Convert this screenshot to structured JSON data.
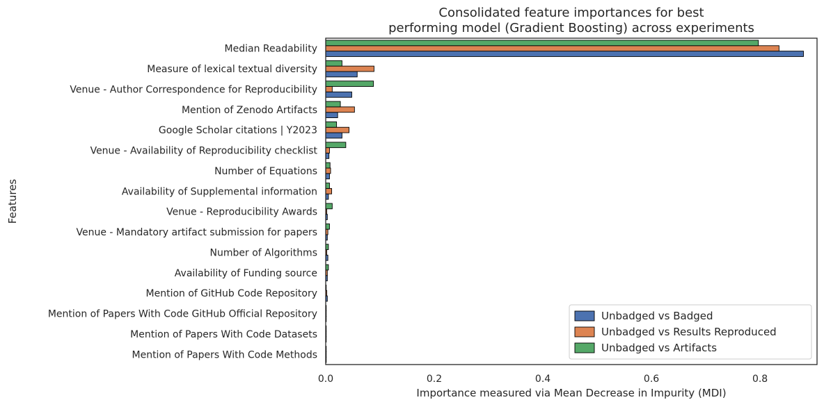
{
  "chart_data": {
    "type": "bar",
    "orientation": "horizontal",
    "title": "Consolidated feature importances for best performing model (Gradient Boosting) across experiments",
    "title_lines": [
      "Consolidated feature importances for best",
      "performing model (Gradient Boosting) across experiments"
    ],
    "xlabel": "Importance measured via Mean Decrease in Impurity (MDI)",
    "ylabel": "Features",
    "xlim": [
      0,
      0.905
    ],
    "xticks": [
      0.0,
      0.2,
      0.4,
      0.6,
      0.8
    ],
    "xtick_labels": [
      "0.0",
      "0.2",
      "0.4",
      "0.6",
      "0.8"
    ],
    "grid": false,
    "legend_position": "lower-right",
    "categories": [
      "Median Readability",
      "Measure of lexical textual diversity",
      "Venue - Author Correspondence for Reproducibility",
      "Mention of Zenodo Artifacts",
      "Google Scholar citations | Y2023",
      "Venue - Availability of Reproducibility checklist",
      "Number of Equations",
      "Availability of Supplemental information",
      "Venue - Reproducibility Awards",
      "Venue - Mandatory artifact submission for papers",
      "Number of Algorithms",
      "Availability of Funding source",
      "Mention of GitHub Code Repository",
      "Mention of Papers With Code GitHub Official Repository",
      "Mention of Papers With Code Datasets",
      "Mention of Papers With Code Methods"
    ],
    "series": [
      {
        "name": "Unbadged vs Badged",
        "color": "#4c72b0",
        "values": [
          0.88,
          0.058,
          0.048,
          0.022,
          0.03,
          0.006,
          0.007,
          0.005,
          0.003,
          0.003,
          0.004,
          0.003,
          0.003,
          0.001,
          0.001,
          0.001
        ]
      },
      {
        "name": "Unbadged vs Results Reproduced",
        "color": "#dd8452",
        "values": [
          0.835,
          0.089,
          0.012,
          0.053,
          0.043,
          0.007,
          0.009,
          0.011,
          0.002,
          0.004,
          0.002,
          0.003,
          0.002,
          0.001,
          0.001,
          0.001
        ]
      },
      {
        "name": "Unbadged vs Artifacts",
        "color": "#55a868",
        "values": [
          0.797,
          0.03,
          0.088,
          0.027,
          0.02,
          0.037,
          0.008,
          0.007,
          0.012,
          0.007,
          0.005,
          0.005,
          0.001,
          0.001,
          0.001,
          0.001
        ]
      }
    ]
  }
}
